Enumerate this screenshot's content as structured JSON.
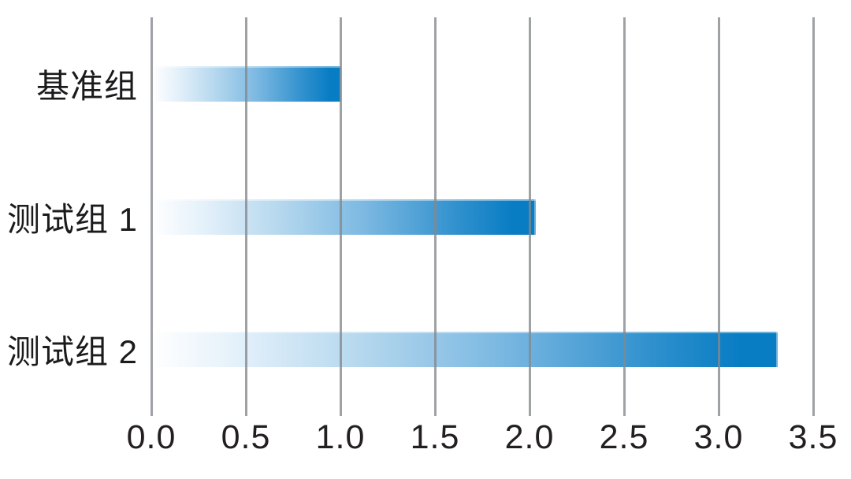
{
  "chart_data": {
    "type": "bar",
    "orientation": "horizontal",
    "title": "",
    "xlabel": "",
    "ylabel": "",
    "categories": [
      "基准组",
      "测试组 1",
      "测试组 2"
    ],
    "values": [
      1.0,
      2.03,
      3.31
    ],
    "xlim": [
      0,
      3.5
    ],
    "xtick_values": [
      0,
      0.5,
      1,
      1.5,
      2,
      2.5,
      3,
      3.5
    ],
    "xtick_labels": [
      "0.0",
      "0.5",
      "1.0",
      "1.5",
      "2.0",
      "2.5",
      "3.0",
      "3.5"
    ],
    "grid": "vertical-gridlines-over-bars",
    "legend": false,
    "colors": {
      "bar_gradient_start": "#ffffff",
      "bar_gradient_end": "#087dc4",
      "gridline": "#a7a9ac",
      "text": "#231f20",
      "background": "#ffffff"
    }
  }
}
